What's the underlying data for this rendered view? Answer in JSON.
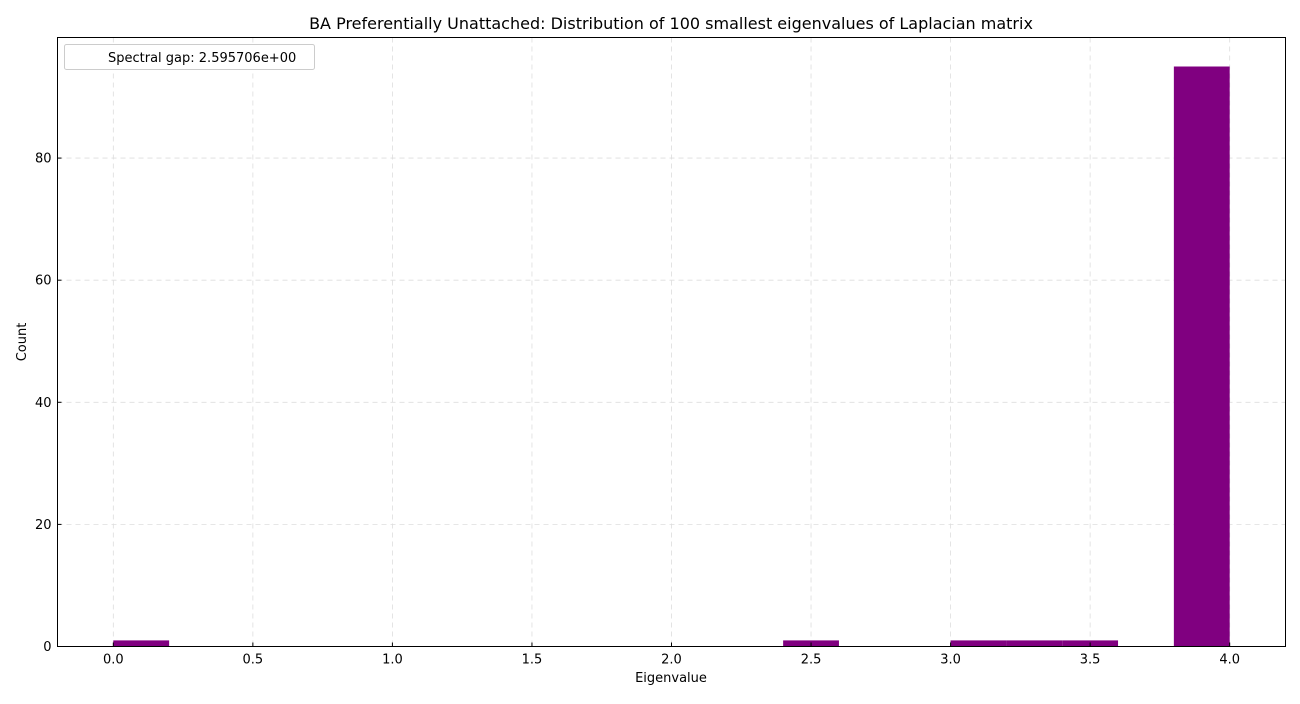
{
  "chart_data": {
    "type": "bar",
    "title": "BA Preferentially Unattached: Distribution of 100 smallest eigenvalues of Laplacian matrix",
    "xlabel": "Eigenvalue",
    "ylabel": "Count",
    "xlim": [
      -0.2,
      4.2
    ],
    "ylim": [
      0,
      99.75
    ],
    "x_ticks": [
      0.0,
      0.5,
      1.0,
      1.5,
      2.0,
      2.5,
      3.0,
      3.5,
      4.0
    ],
    "x_tick_labels": [
      "0.0",
      "0.5",
      "1.0",
      "1.5",
      "2.0",
      "2.5",
      "3.0",
      "3.5",
      "4.0"
    ],
    "y_ticks": [
      0,
      20,
      40,
      60,
      80
    ],
    "y_tick_labels": [
      "0",
      "20",
      "40",
      "60",
      "80"
    ],
    "bin_width": 0.2,
    "bins": [
      {
        "x0": 0.0,
        "x1": 0.2,
        "count": 1
      },
      {
        "x0": 0.2,
        "x1": 0.4,
        "count": 0
      },
      {
        "x0": 0.4,
        "x1": 0.6,
        "count": 0
      },
      {
        "x0": 0.6,
        "x1": 0.8,
        "count": 0
      },
      {
        "x0": 0.8,
        "x1": 1.0,
        "count": 0
      },
      {
        "x0": 1.0,
        "x1": 1.2,
        "count": 0
      },
      {
        "x0": 1.2,
        "x1": 1.4,
        "count": 0
      },
      {
        "x0": 1.4,
        "x1": 1.6,
        "count": 0
      },
      {
        "x0": 1.6,
        "x1": 1.8,
        "count": 0
      },
      {
        "x0": 1.8,
        "x1": 2.0,
        "count": 0
      },
      {
        "x0": 2.0,
        "x1": 2.2,
        "count": 0
      },
      {
        "x0": 2.2,
        "x1": 2.4,
        "count": 0
      },
      {
        "x0": 2.4,
        "x1": 2.6,
        "count": 1
      },
      {
        "x0": 2.6,
        "x1": 2.8,
        "count": 0
      },
      {
        "x0": 2.8,
        "x1": 3.0,
        "count": 0
      },
      {
        "x0": 3.0,
        "x1": 3.2,
        "count": 1
      },
      {
        "x0": 3.2,
        "x1": 3.4,
        "count": 1
      },
      {
        "x0": 3.4,
        "x1": 3.6,
        "count": 1
      },
      {
        "x0": 3.6,
        "x1": 3.8,
        "count": 0
      },
      {
        "x0": 3.8,
        "x1": 4.0,
        "count": 95
      }
    ],
    "bar_color": "#800080",
    "grid": true,
    "legend": {
      "placement": "top-left",
      "entries": [
        "Spectral gap: 2.595706e+00"
      ]
    }
  }
}
